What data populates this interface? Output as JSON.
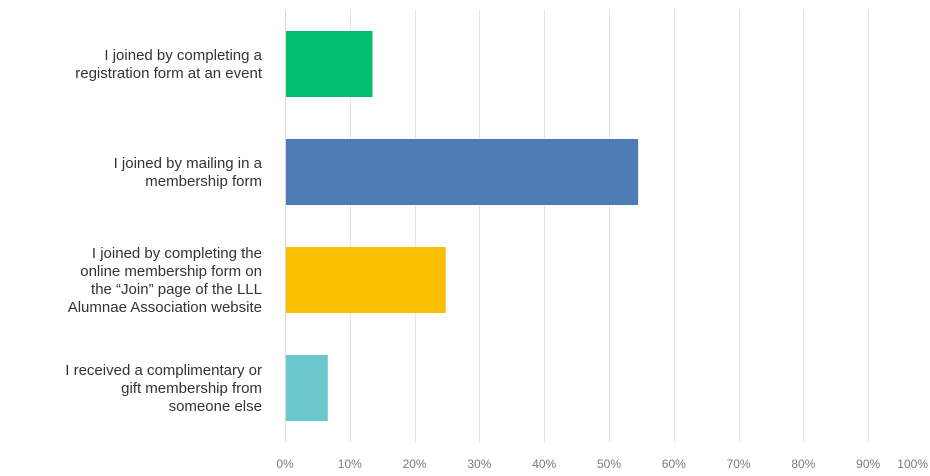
{
  "chart_data": {
    "type": "bar",
    "orientation": "horizontal",
    "categories": [
      [
        "I joined by completing a",
        "registration form at an event"
      ],
      [
        "I joined by mailing in a",
        "membership form"
      ],
      [
        "I joined by completing the",
        "online membership form on",
        "the “Join” page of the LLL",
        "Alumnae Association website"
      ],
      [
        "I received a complimentary or",
        "gift membership from",
        "someone else"
      ]
    ],
    "values": [
      13.5,
      54.5,
      24.8,
      6.6
    ],
    "colors": [
      "#00bf6f",
      "#507cb6",
      "#f9be00",
      "#6bc8cd"
    ],
    "xlim": [
      0,
      100
    ],
    "x_ticks": [
      "0%",
      "10%",
      "20%",
      "30%",
      "40%",
      "50%",
      "60%",
      "70%",
      "80%",
      "90%",
      "100%"
    ],
    "grid": true,
    "legend": "none"
  }
}
